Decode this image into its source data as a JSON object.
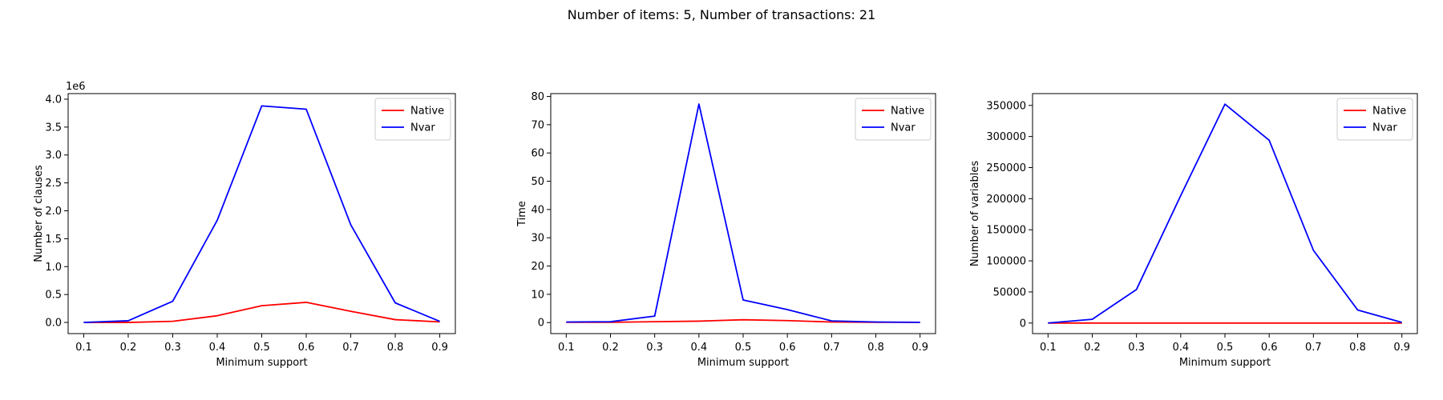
{
  "suptitle": "Number of items: 5, Number of transactions: 21",
  "chart_data": [
    {
      "type": "line",
      "xlabel": "Minimum support",
      "ylabel": "Number of clauses",
      "offset_label": "1e6",
      "x": [
        0.1,
        0.2,
        0.3,
        0.4,
        0.5,
        0.6,
        0.7,
        0.8,
        0.9
      ],
      "xticks": [
        "0.1",
        "0.2",
        "0.3",
        "0.4",
        "0.5",
        "0.6",
        "0.7",
        "0.8",
        "0.9"
      ],
      "ylim": [
        -0.2,
        4.1
      ],
      "yticks": [
        0.0,
        0.5,
        1.0,
        1.5,
        2.0,
        2.5,
        3.0,
        3.5,
        4.0
      ],
      "ytick_labels": [
        "0.0",
        "0.5",
        "1.0",
        "1.5",
        "2.0",
        "2.5",
        "3.0",
        "3.5",
        "4.0"
      ],
      "legend_position": "top-right",
      "series": [
        {
          "name": "Native",
          "color": "#ff0000",
          "values": [
            0.0,
            0.0,
            0.02,
            0.12,
            0.3,
            0.36,
            0.2,
            0.05,
            0.01
          ]
        },
        {
          "name": "Nvar",
          "color": "#0000ff",
          "values": [
            0.0,
            0.03,
            0.38,
            1.83,
            3.88,
            3.82,
            1.75,
            0.35,
            0.02
          ]
        }
      ]
    },
    {
      "type": "line",
      "xlabel": "Minimum support",
      "ylabel": "Time",
      "offset_label": "",
      "x": [
        0.1,
        0.2,
        0.3,
        0.4,
        0.5,
        0.6,
        0.7,
        0.8,
        0.9
      ],
      "xticks": [
        "0.1",
        "0.2",
        "0.3",
        "0.4",
        "0.5",
        "0.6",
        "0.7",
        "0.8",
        "0.9"
      ],
      "ylim": [
        -3.9,
        81
      ],
      "yticks": [
        0,
        10,
        20,
        30,
        40,
        50,
        60,
        70,
        80
      ],
      "ytick_labels": [
        "0",
        "10",
        "20",
        "30",
        "40",
        "50",
        "60",
        "70",
        "80"
      ],
      "legend_position": "top-right",
      "series": [
        {
          "name": "Native",
          "color": "#ff0000",
          "values": [
            0.1,
            0.1,
            0.3,
            0.5,
            1.0,
            0.7,
            0.2,
            0.1,
            0.1
          ]
        },
        {
          "name": "Nvar",
          "color": "#0000ff",
          "values": [
            0.2,
            0.3,
            2.3,
            77.3,
            8.0,
            4.6,
            0.6,
            0.2,
            0.1
          ]
        }
      ]
    },
    {
      "type": "line",
      "xlabel": "Minimum support",
      "ylabel": "Number of variables",
      "offset_label": "",
      "x": [
        0.1,
        0.2,
        0.3,
        0.4,
        0.5,
        0.6,
        0.7,
        0.8,
        0.9
      ],
      "xticks": [
        "0.1",
        "0.2",
        "0.3",
        "0.4",
        "0.5",
        "0.6",
        "0.7",
        "0.8",
        "0.9"
      ],
      "ylim": [
        -17000,
        369000
      ],
      "yticks": [
        0,
        50000,
        100000,
        150000,
        200000,
        250000,
        300000,
        350000
      ],
      "ytick_labels": [
        "0",
        "50000",
        "100000",
        "150000",
        "200000",
        "250000",
        "300000",
        "350000"
      ],
      "legend_position": "top-right",
      "series": [
        {
          "name": "Native",
          "color": "#ff0000",
          "values": [
            0,
            0,
            0,
            0,
            0,
            0,
            0,
            0,
            0
          ]
        },
        {
          "name": "Nvar",
          "color": "#0000ff",
          "values": [
            0,
            6000,
            54000,
            205000,
            352000,
            294000,
            117000,
            21000,
            1000
          ]
        }
      ]
    }
  ]
}
